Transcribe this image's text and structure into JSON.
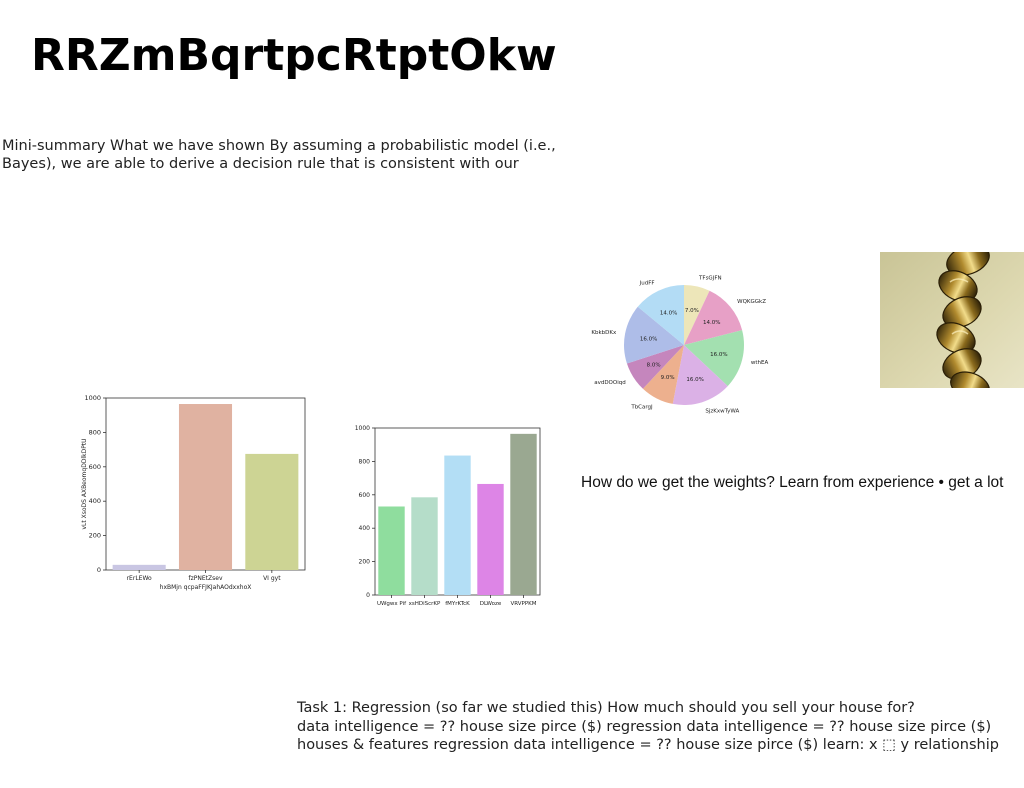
{
  "slide": {
    "title": "RRZmBqrtpcRtptOkw",
    "summary": "Mini-summary What we have shown By assuming a probabilistic model (i.e., Bayes), we are able to derive a decision rule that is consistent with our",
    "question": "How do we get the weights? Learn from experience • get a lot",
    "task_lines": [
      "Task 1: Regression (so far we studied this) How much should you sell your house for?",
      "data intelligence = ?? house size pirce ($) regression data intelligence = ?? house size pirce ($)",
      "houses & features regression data intelligence = ?? house size pirce ($) learn: x ⬚ y relationship"
    ],
    "photo_icon": "gold-chain-photo"
  },
  "chart_data": [
    {
      "type": "bar",
      "categories": [
        "rErLEWo",
        "fzPNEtZsev",
        "VI gyt"
      ],
      "values": [
        30,
        965,
        675
      ],
      "colors": [
        "#c9c6e3",
        "#e0b2a1",
        "#cdd494"
      ],
      "xlabel": "hxBMjn qcpaFFJKJahAOdxxhoX",
      "ylabel": "vLt XsoDS AXBeomqDDlkDPtU",
      "ylim": [
        0,
        1000
      ],
      "yticks": [
        0,
        200,
        400,
        600,
        800,
        1000
      ]
    },
    {
      "type": "bar",
      "categories": [
        "UWgwx Pif",
        "xsHDiScrKP",
        "fMYrKTcK",
        "DLWoze",
        "VRVPPKM"
      ],
      "values": [
        530,
        585,
        835,
        665,
        965
      ],
      "colors": [
        "#8fdd9e",
        "#b5ddc9",
        "#b3def5",
        "#dd85e6",
        "#9aa891"
      ],
      "xlabel": "",
      "ylabel": "",
      "ylim": [
        0,
        1000
      ],
      "yticks": [
        0,
        200,
        400,
        600,
        800,
        1000
      ]
    },
    {
      "type": "pie",
      "labels": [
        "TFsGJFN",
        "WQKGGkZ",
        "wthEA",
        "SjzKxwTyWA",
        "TbCargJ",
        "avdDOOiqd",
        "KbkbDKx",
        "JudFF"
      ],
      "values": [
        7.0,
        14.0,
        16.0,
        16.0,
        9.0,
        8.0,
        16.0,
        14.0
      ],
      "percent_labels": [
        "7.0%",
        "14.0%",
        "16.0%",
        "16.0%",
        "9.0%",
        "8.0%",
        "16.0%",
        "14.0%"
      ],
      "colors": [
        "#ede6b9",
        "#e7a0c6",
        "#a3e0b0",
        "#dbb1e6",
        "#edb08e",
        "#c586bd",
        "#aebde8",
        "#b3dcf5"
      ]
    }
  ]
}
